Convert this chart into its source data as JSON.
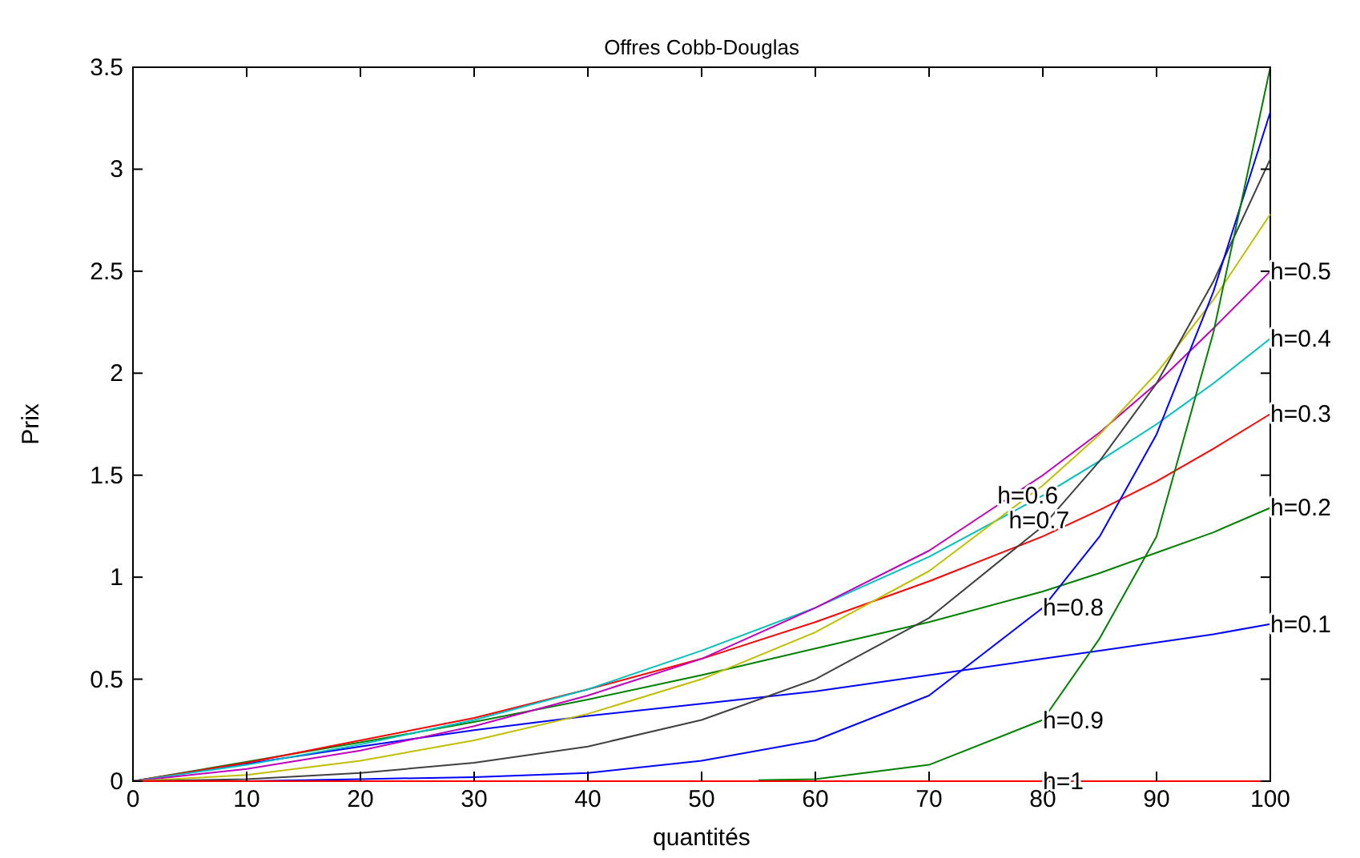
{
  "chart_data": {
    "type": "line",
    "title": "Offres Cobb-Douglas",
    "xlabel": "quantités",
    "ylabel": "Prix",
    "x": [
      0,
      10,
      20,
      30,
      40,
      50,
      60,
      70,
      80,
      85,
      90,
      95,
      100
    ],
    "xlim": [
      0,
      100
    ],
    "xticks": [
      0,
      10,
      20,
      30,
      40,
      50,
      60,
      70,
      80,
      90,
      100
    ],
    "ylim": [
      0,
      3.5
    ],
    "yticks": [
      0,
      0.5,
      1,
      1.5,
      2,
      2.5,
      3,
      3.5
    ],
    "grid": false,
    "line_style": "solid",
    "series": [
      {
        "color": "#0000ff",
        "values": [
          0,
          null,
          0.17,
          0.25,
          0.32,
          0.38,
          0.44,
          0.52,
          0.6,
          0.64,
          0.68,
          0.72,
          0.77
        ]
      },
      {
        "color": "#008000",
        "values": [
          0,
          null,
          0.19,
          0.29,
          0.4,
          0.52,
          0.65,
          0.78,
          0.93,
          1.02,
          1.12,
          1.22,
          1.34
        ]
      },
      {
        "color": "#ff0000",
        "values": [
          0,
          0.09,
          0.2,
          0.31,
          0.45,
          0.6,
          0.78,
          0.98,
          1.2,
          1.33,
          1.47,
          1.63,
          1.8
        ]
      },
      {
        "color": "#00bfbf",
        "values": [
          0,
          0.08,
          0.18,
          0.3,
          0.45,
          0.64,
          0.85,
          1.1,
          1.4,
          1.57,
          1.75,
          1.95,
          2.17
        ]
      },
      {
        "color": "#bf00bf",
        "values": [
          0,
          0.06,
          0.15,
          0.27,
          0.42,
          0.6,
          0.85,
          1.13,
          1.5,
          1.71,
          1.95,
          2.22,
          2.5
        ]
      },
      {
        "color": "#bfbf00",
        "values": [
          0,
          0.03,
          0.1,
          0.2,
          0.33,
          0.5,
          0.73,
          1.03,
          1.45,
          1.7,
          2.0,
          2.36,
          2.78
        ]
      },
      {
        "color": "#404040",
        "values": [
          0,
          0.01,
          0.04,
          0.09,
          0.17,
          0.3,
          0.5,
          0.8,
          1.25,
          1.57,
          1.95,
          2.45,
          3.05
        ]
      },
      {
        "color": "#0000ff",
        "values": [
          null,
          0,
          0.01,
          0.02,
          0.04,
          0.1,
          0.2,
          0.42,
          0.85,
          1.2,
          1.7,
          2.4,
          3.28
        ]
      },
      {
        "color": "#008000",
        "x": [
          55,
          60,
          70,
          80,
          85,
          90,
          95,
          100
        ],
        "values": [
          0.005,
          0.01,
          0.08,
          0.3,
          0.7,
          1.2,
          2.2,
          3.5
        ]
      },
      {
        "color": "#ff0000",
        "values": [
          0,
          0,
          0,
          0,
          0,
          0,
          0,
          0,
          0,
          0,
          0,
          0,
          0
        ]
      }
    ],
    "annotations": [
      {
        "text": "h=0.1",
        "x": 100,
        "y": 0.77
      },
      {
        "text": "h=0.2",
        "x": 100,
        "y": 1.34
      },
      {
        "text": "h=0.3",
        "x": 100,
        "y": 1.8
      },
      {
        "text": "h=0.4",
        "x": 100,
        "y": 2.17
      },
      {
        "text": "h=0.5",
        "x": 100,
        "y": 2.5
      },
      {
        "text": "h=0.6",
        "x": 76,
        "y": 1.4
      },
      {
        "text": "h=0.7",
        "x": 77,
        "y": 1.28
      },
      {
        "text": "h=0.8",
        "x": 80,
        "y": 0.85
      },
      {
        "text": "h=0.9",
        "x": 80,
        "y": 0.3
      },
      {
        "text": "h=1",
        "x": 80,
        "y": 0
      }
    ]
  }
}
